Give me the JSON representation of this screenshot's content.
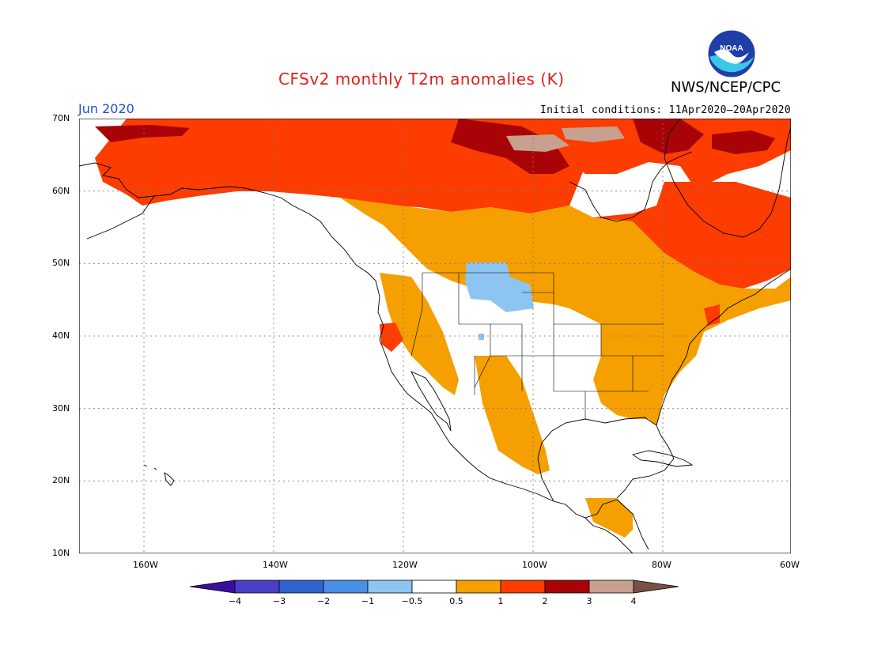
{
  "header": {
    "title": "CFSv2 monthly T2m anomalies (K)",
    "agency": "NWS/NCEP/CPC",
    "logo_text": "NOAA",
    "month": "Jun 2020",
    "initial_conditions": "Initial conditions: 11Apr2020–20Apr2020"
  },
  "axes": {
    "lat_labels": [
      "70N",
      "60N",
      "50N",
      "40N",
      "30N",
      "20N",
      "10N"
    ],
    "lon_labels": [
      "160W",
      "140W",
      "120W",
      "100W",
      "80W",
      "60W"
    ]
  },
  "colorbar": {
    "labels": [
      "−4",
      "−3",
      "−2",
      "−1",
      "−0.5",
      "0.5",
      "1",
      "2",
      "3",
      "4"
    ],
    "colors": [
      "#3a0fa0",
      "#4a3fc8",
      "#2f63d0",
      "#4a8fe6",
      "#8ec4f2",
      "#ffffff",
      "#f5a000",
      "#fc3c00",
      "#a80408",
      "#c8a090",
      "#785046"
    ]
  },
  "colors": {
    "anomaly_0_5_to_1": "#f5a000",
    "anomaly_1_to_2": "#fc3c00",
    "anomaly_2_to_3": "#a80408",
    "anomaly_3_to_4": "#c8a090",
    "anomaly_neg_0_5_to_neg_1": "#8ec4f2",
    "anomaly_neg_1_to_neg_2": "#4a8fe6"
  }
}
